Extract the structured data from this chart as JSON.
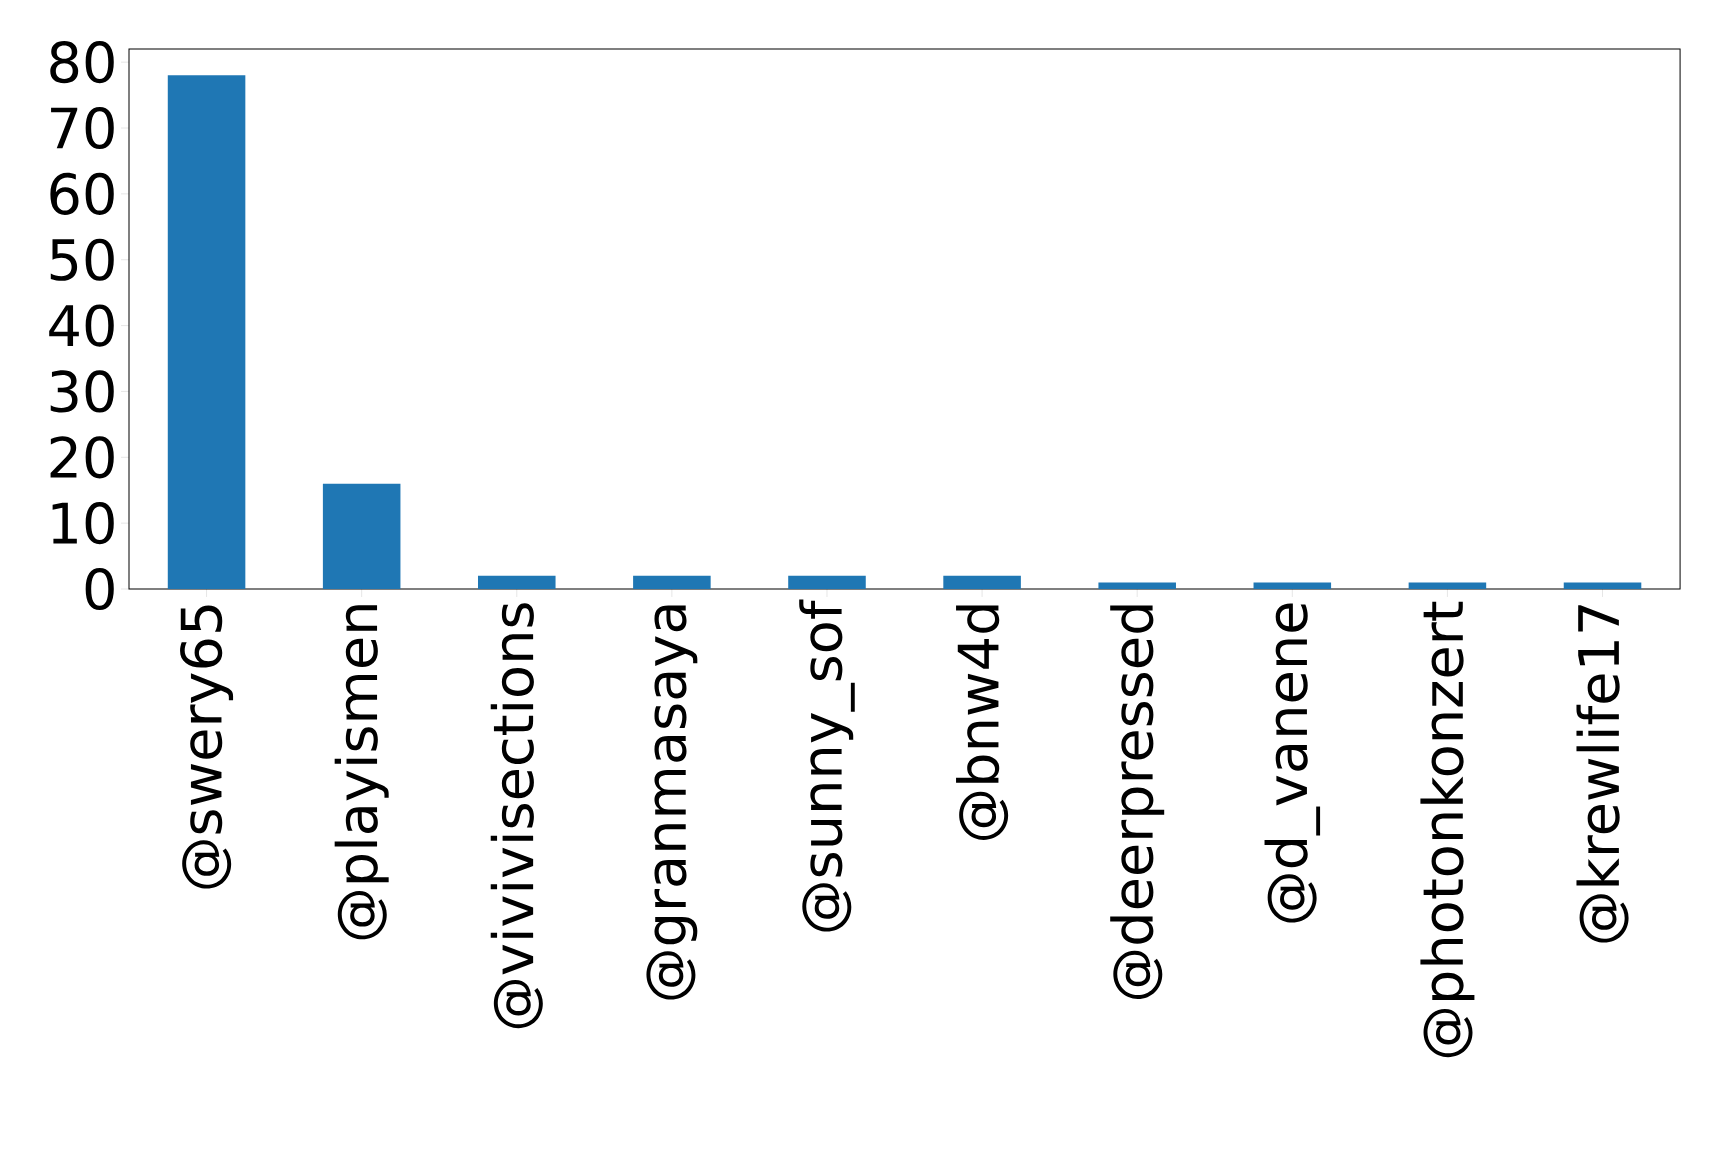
{
  "chart_data": {
    "type": "bar",
    "categories": [
      "@swery65",
      "@playismen",
      "@vivivisections",
      "@granmasaya",
      "@sunny_sof",
      "@bnw4d",
      "@deerpressed",
      "@d_vanene",
      "@photonkonzert",
      "@krewlife17"
    ],
    "values": [
      78,
      16,
      2,
      2,
      2,
      2,
      1,
      1,
      1,
      1
    ],
    "color": "#1f77b4",
    "ylim": [
      0,
      82
    ],
    "yticks": [
      0,
      10,
      20,
      30,
      40,
      50,
      60,
      70,
      80
    ],
    "grid": false
  }
}
